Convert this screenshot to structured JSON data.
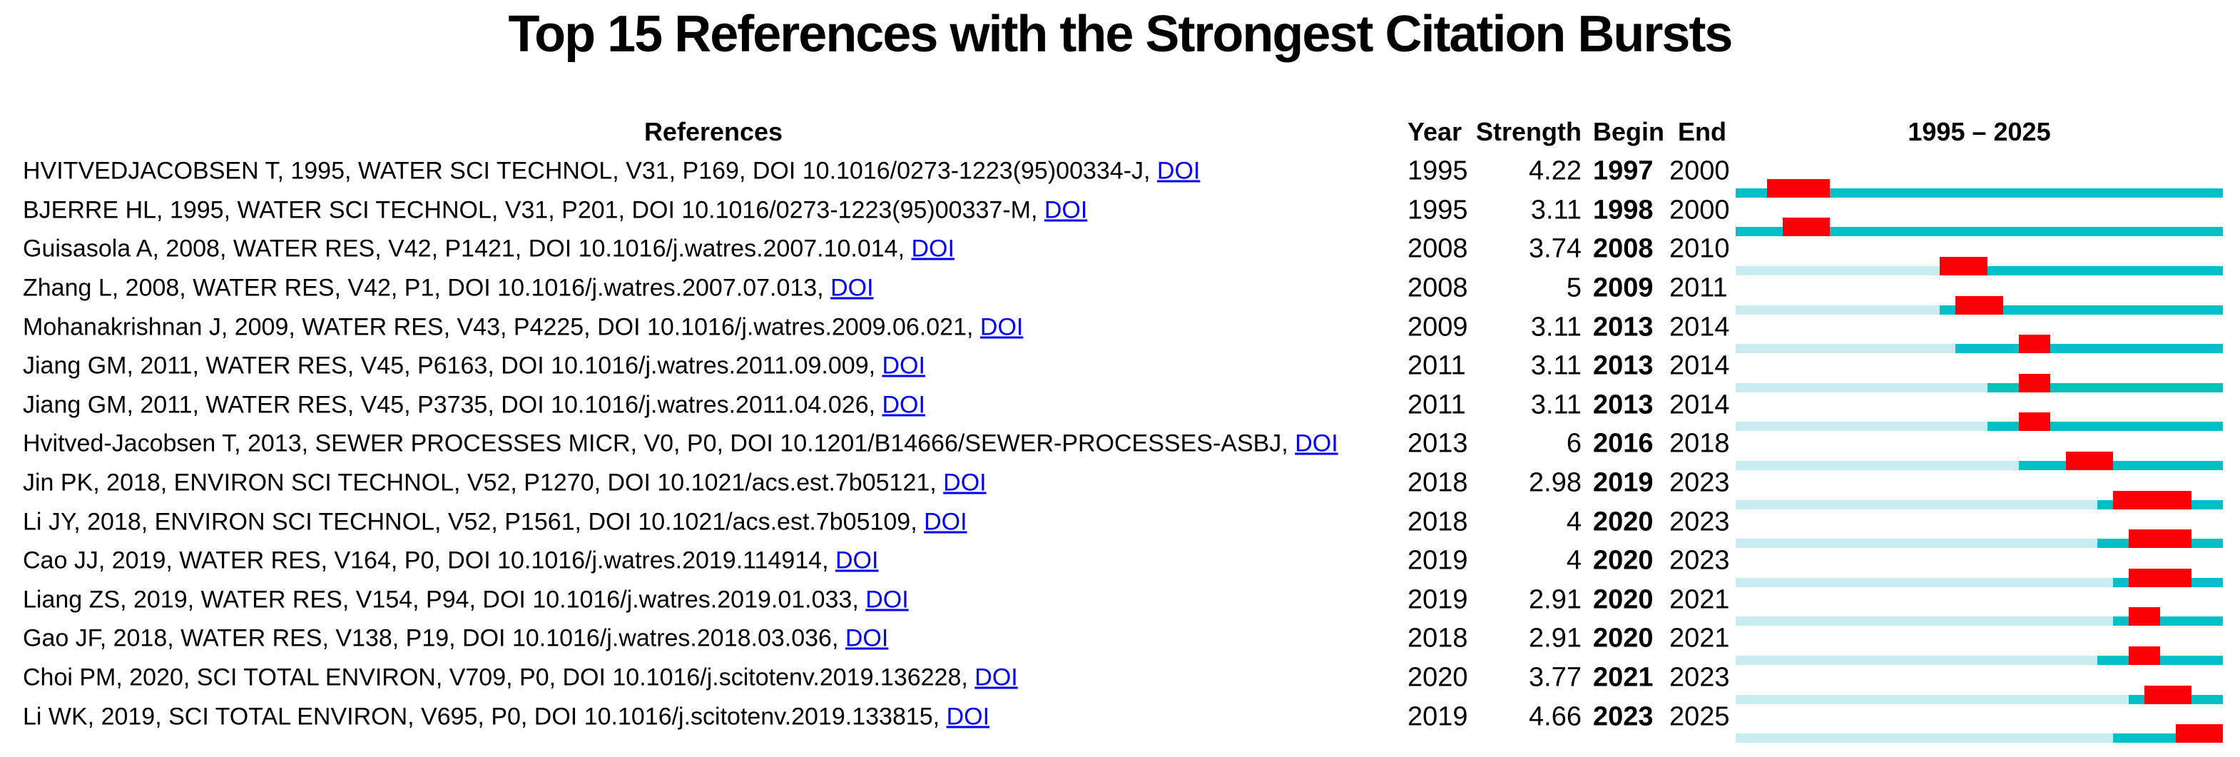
{
  "title": "Top 15 References with the Strongest Citation Bursts",
  "columns": {
    "references": "References",
    "year": "Year",
    "strength": "Strength",
    "begin": "Begin",
    "end": "End",
    "period": "1995 – 2025"
  },
  "doi_link_label": "DOI",
  "colors": {
    "timeline": "#00BFC5",
    "pre_publication": "#C8ECEF",
    "burst": "#FB0007",
    "link": "#0000EE",
    "text": "#000000",
    "background": "#FFFFFF"
  },
  "chart_data": {
    "type": "bar",
    "subtype": "citation-burst-timeline",
    "title": "Top 15 References with the Strongest Citation Bursts",
    "xlabel": "1995 – 2025",
    "timeline": {
      "start": 1995,
      "end": 2025
    },
    "legend_position": "none",
    "grid": false,
    "rows": [
      {
        "reference": "HVITVEDJACOBSEN T, 1995, WATER SCI TECHNOL, V31, P169, DOI 10.1016/0273-1223(95)00334-J,",
        "year": 1995,
        "strength": "4.22",
        "begin": 1997,
        "end": 2000
      },
      {
        "reference": "BJERRE HL, 1995, WATER SCI TECHNOL, V31, P201, DOI 10.1016/0273-1223(95)00337-M,",
        "year": 1995,
        "strength": "3.11",
        "begin": 1998,
        "end": 2000
      },
      {
        "reference": "Guisasola A, 2008, WATER RES, V42, P1421, DOI 10.1016/j.watres.2007.10.014,",
        "year": 2008,
        "strength": "3.74",
        "begin": 2008,
        "end": 2010
      },
      {
        "reference": "Zhang L, 2008, WATER RES, V42, P1, DOI 10.1016/j.watres.2007.07.013,",
        "year": 2008,
        "strength": "5",
        "begin": 2009,
        "end": 2011
      },
      {
        "reference": "Mohanakrishnan J, 2009, WATER RES, V43, P4225, DOI 10.1016/j.watres.2009.06.021,",
        "year": 2009,
        "strength": "3.11",
        "begin": 2013,
        "end": 2014
      },
      {
        "reference": "Jiang GM, 2011, WATER RES, V45, P6163, DOI 10.1016/j.watres.2011.09.009,",
        "year": 2011,
        "strength": "3.11",
        "begin": 2013,
        "end": 2014
      },
      {
        "reference": "Jiang GM, 2011, WATER RES, V45, P3735, DOI 10.1016/j.watres.2011.04.026,",
        "year": 2011,
        "strength": "3.11",
        "begin": 2013,
        "end": 2014
      },
      {
        "reference": "Hvitved-Jacobsen T, 2013, SEWER PROCESSES MICR, V0, P0, DOI 10.1201/B14666/SEWER-PROCESSES-ASBJ,",
        "year": 2013,
        "strength": "6",
        "begin": 2016,
        "end": 2018
      },
      {
        "reference": "Jin PK, 2018, ENVIRON SCI TECHNOL, V52, P1270, DOI 10.1021/acs.est.7b05121,",
        "year": 2018,
        "strength": "2.98",
        "begin": 2019,
        "end": 2023
      },
      {
        "reference": "Li JY, 2018, ENVIRON SCI TECHNOL, V52, P1561, DOI 10.1021/acs.est.7b05109,",
        "year": 2018,
        "strength": "4",
        "begin": 2020,
        "end": 2023
      },
      {
        "reference": "Cao JJ, 2019, WATER RES, V164, P0, DOI 10.1016/j.watres.2019.114914,",
        "year": 2019,
        "strength": "4",
        "begin": 2020,
        "end": 2023
      },
      {
        "reference": "Liang ZS, 2019, WATER RES, V154, P94, DOI 10.1016/j.watres.2019.01.033,",
        "year": 2019,
        "strength": "2.91",
        "begin": 2020,
        "end": 2021
      },
      {
        "reference": "Gao JF, 2018, WATER RES, V138, P19, DOI 10.1016/j.watres.2018.03.036,",
        "year": 2018,
        "strength": "2.91",
        "begin": 2020,
        "end": 2021
      },
      {
        "reference": "Choi PM, 2020, SCI TOTAL ENVIRON, V709, P0, DOI 10.1016/j.scitotenv.2019.136228,",
        "year": 2020,
        "strength": "3.77",
        "begin": 2021,
        "end": 2023
      },
      {
        "reference": "Li WK, 2019, SCI TOTAL ENVIRON, V695, P0, DOI 10.1016/j.scitotenv.2019.133815,",
        "year": 2019,
        "strength": "4.66",
        "begin": 2023,
        "end": 2025
      }
    ]
  }
}
